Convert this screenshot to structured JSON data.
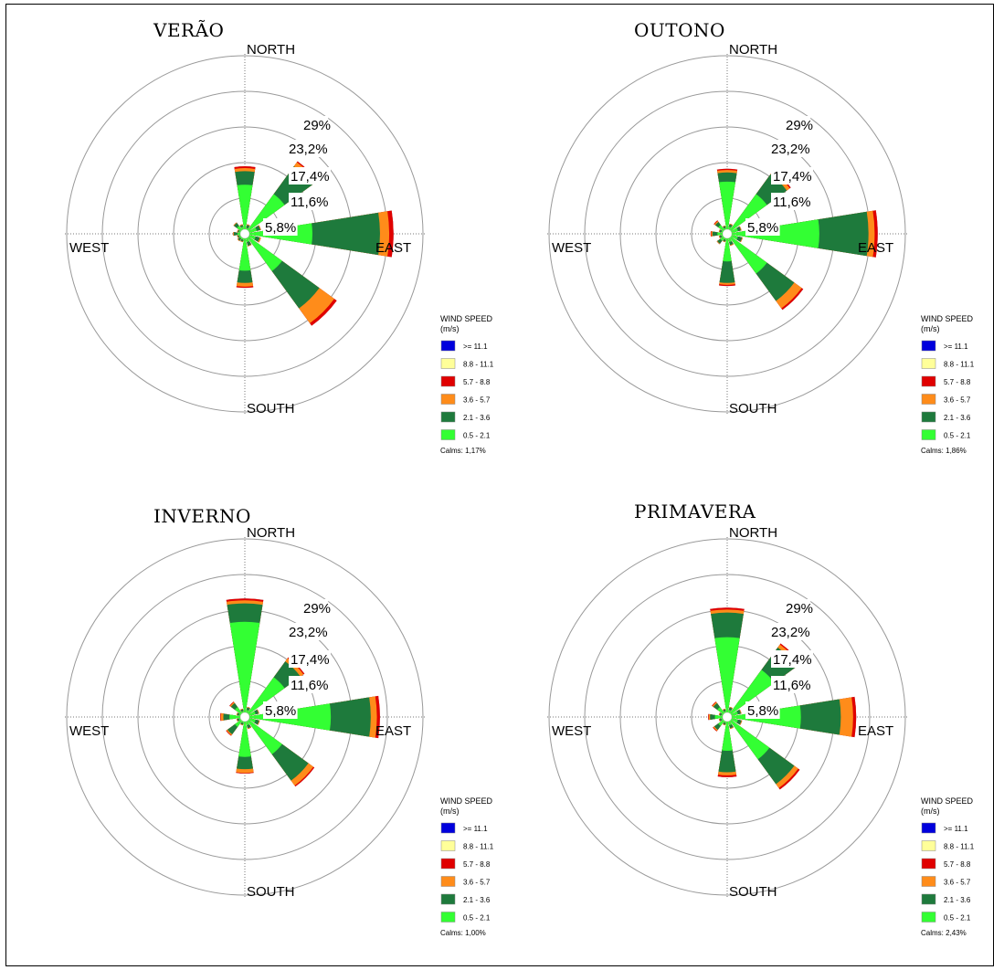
{
  "chart_data": [
    {
      "type": "wind-rose",
      "title": "VERÃO",
      "direction_labels": [
        "NORTH",
        "EAST",
        "SOUTH",
        "WEST"
      ],
      "ring_labels": [
        "5,8%",
        "11,6%",
        "17,4%",
        "23,2%",
        "29%"
      ],
      "rings": [
        5.8,
        11.6,
        17.4,
        23.2,
        29
      ],
      "legend_title": [
        "WIND SPEED",
        "(m/s)"
      ],
      "bins": [
        "0.5 - 2.1",
        "2.1 - 3.6",
        "3.6 - 5.7",
        "5.7 - 8.8",
        "8.8 - 11.1",
        ">= 11.1"
      ],
      "bin_colors": [
        "#33ff33",
        "#1e7a3c",
        "#ff8c1a",
        "#e00000",
        "#ffff99",
        "#0000dd"
      ],
      "directions_deg": [
        0,
        22.5,
        45,
        67.5,
        90,
        112.5,
        135,
        157.5,
        180,
        202.5,
        225,
        247.5,
        270,
        292.5,
        315,
        337.5
      ],
      "cumulative_percent": [
        [
          8.0,
          10.2,
          10.7,
          11.0,
          11.0,
          11.0
        ],
        [
          1.0,
          1.5,
          1.6,
          1.6,
          1.6,
          1.6
        ],
        [
          8.0,
          13.6,
          14.4,
          14.6,
          14.6,
          14.6
        ],
        [
          2.0,
          2.6,
          2.7,
          2.7,
          2.7,
          2.7
        ],
        [
          11.0,
          22.0,
          23.5,
          24.2,
          24.2,
          24.2
        ],
        [
          1.8,
          2.5,
          2.7,
          2.7,
          2.7,
          2.7
        ],
        [
          7.5,
          15.0,
          18.0,
          18.5,
          18.5,
          18.5
        ],
        [
          1.4,
          2.0,
          2.1,
          2.1,
          2.1,
          2.1
        ],
        [
          6.0,
          8.0,
          8.6,
          8.8,
          8.8,
          8.8
        ],
        [
          1.0,
          1.3,
          1.4,
          1.4,
          1.4,
          1.4
        ],
        [
          1.0,
          1.4,
          1.5,
          1.5,
          1.5,
          1.5
        ],
        [
          1.0,
          1.2,
          1.3,
          1.3,
          1.3,
          1.3
        ],
        [
          1.2,
          1.8,
          1.9,
          1.9,
          1.9,
          1.9
        ],
        [
          1.0,
          1.2,
          1.3,
          1.3,
          1.3,
          1.3
        ],
        [
          1.6,
          2.2,
          2.3,
          2.3,
          2.3,
          2.3
        ],
        [
          1.2,
          1.5,
          1.6,
          1.6,
          1.6,
          1.6
        ]
      ],
      "calms": "Calms: 1,17%"
    },
    {
      "type": "wind-rose",
      "title": "OUTONO",
      "direction_labels": [
        "NORTH",
        "EAST",
        "SOUTH",
        "WEST"
      ],
      "ring_labels": [
        "5,8%",
        "11,6%",
        "17,4%",
        "23,2%",
        "29%"
      ],
      "rings": [
        5.8,
        11.6,
        17.4,
        23.2,
        29
      ],
      "legend_title": [
        "WIND SPEED",
        "(m/s)"
      ],
      "bins": [
        "0.5 - 2.1",
        "2.1 - 3.6",
        "3.6 - 5.7",
        "5.7 - 8.8",
        "8.8 - 11.1",
        ">= 11.1"
      ],
      "bin_colors": [
        "#33ff33",
        "#1e7a3c",
        "#ff8c1a",
        "#e00000",
        "#ffff99",
        "#0000dd"
      ],
      "directions_deg": [
        0,
        22.5,
        45,
        67.5,
        90,
        112.5,
        135,
        157.5,
        180,
        202.5,
        225,
        247.5,
        270,
        292.5,
        315,
        337.5
      ],
      "cumulative_percent": [
        [
          8.5,
          10.0,
          10.4,
          10.6,
          10.6,
          10.6
        ],
        [
          1.2,
          1.6,
          1.7,
          1.7,
          1.7,
          1.7
        ],
        [
          8.0,
          12.0,
          12.6,
          12.8,
          12.8,
          12.8
        ],
        [
          1.8,
          2.3,
          2.4,
          2.4,
          2.4,
          2.4
        ],
        [
          15.0,
          23.0,
          24.0,
          24.5,
          24.5,
          24.5
        ],
        [
          1.8,
          2.5,
          2.6,
          2.6,
          2.6,
          2.6
        ],
        [
          8.0,
          13.5,
          15.0,
          15.3,
          15.3,
          15.3
        ],
        [
          1.4,
          1.9,
          2.0,
          2.0,
          2.0,
          2.0
        ],
        [
          4.5,
          8.0,
          8.3,
          8.5,
          8.5,
          8.5
        ],
        [
          1.0,
          1.3,
          1.4,
          1.4,
          1.4,
          1.4
        ],
        [
          1.4,
          2.0,
          2.1,
          2.1,
          2.1,
          2.1
        ],
        [
          1.0,
          1.3,
          1.4,
          1.4,
          1.4,
          1.4
        ],
        [
          1.6,
          2.4,
          2.6,
          2.7,
          2.7,
          2.7
        ],
        [
          1.0,
          1.3,
          1.4,
          1.4,
          1.4,
          1.4
        ],
        [
          1.8,
          2.4,
          2.6,
          2.7,
          2.7,
          2.7
        ],
        [
          1.0,
          1.3,
          1.4,
          1.4,
          1.4,
          1.4
        ]
      ],
      "calms": "Calms: 1,86%"
    },
    {
      "type": "wind-rose",
      "title": "INVERNO",
      "direction_labels": [
        "NORTH",
        "EAST",
        "SOUTH",
        "WEST"
      ],
      "ring_labels": [
        "5,8%",
        "11,6%",
        "17,4%",
        "23,2%",
        "29%"
      ],
      "rings": [
        5.8,
        11.6,
        17.4,
        23.2,
        29
      ],
      "legend_title": [
        "WIND SPEED",
        "(m/s)"
      ],
      "bins": [
        "0.5 - 2.1",
        "2.1 - 3.6",
        "3.6 - 5.7",
        "5.7 - 8.8",
        "8.8 - 11.1",
        ">= 11.1"
      ],
      "bin_colors": [
        "#33ff33",
        "#1e7a3c",
        "#ff8c1a",
        "#e00000",
        "#ffff99",
        "#0000dd"
      ],
      "directions_deg": [
        0,
        22.5,
        45,
        67.5,
        90,
        112.5,
        135,
        157.5,
        180,
        202.5,
        225,
        247.5,
        270,
        292.5,
        315,
        337.5
      ],
      "cumulative_percent": [
        [
          15.5,
          18.5,
          19.0,
          19.3,
          19.3,
          19.3
        ],
        [
          1.2,
          1.6,
          1.7,
          1.7,
          1.7,
          1.7
        ],
        [
          8.0,
          11.2,
          11.8,
          12.0,
          12.0,
          12.0
        ],
        [
          1.8,
          2.3,
          2.4,
          2.4,
          2.4,
          2.4
        ],
        [
          14.0,
          20.5,
          21.5,
          22.0,
          22.0,
          22.0
        ],
        [
          1.8,
          2.4,
          2.5,
          2.5,
          2.5,
          2.5
        ],
        [
          7.5,
          12.8,
          13.8,
          14.0,
          14.0,
          14.0
        ],
        [
          1.4,
          1.9,
          2.0,
          2.0,
          2.0,
          2.0
        ],
        [
          6.5,
          8.5,
          9.1,
          9.2,
          9.2,
          9.2
        ],
        [
          1.0,
          1.3,
          1.4,
          1.4,
          1.4,
          1.4
        ],
        [
          2.0,
          3.5,
          3.7,
          3.8,
          3.8,
          3.8
        ],
        [
          1.0,
          1.3,
          1.4,
          1.4,
          1.4,
          1.4
        ],
        [
          2.5,
          3.5,
          3.9,
          4.0,
          4.0,
          4.0
        ],
        [
          1.0,
          1.3,
          1.4,
          1.4,
          1.4,
          1.4
        ],
        [
          2.0,
          2.8,
          3.0,
          3.1,
          3.1,
          3.1
        ],
        [
          1.0,
          1.3,
          1.4,
          1.4,
          1.4,
          1.4
        ]
      ],
      "calms": "Calms: 1,00%"
    },
    {
      "type": "wind-rose",
      "title": "PRIMAVERA",
      "direction_labels": [
        "NORTH",
        "EAST",
        "SOUTH",
        "WEST"
      ],
      "ring_labels": [
        "5,8%",
        "11,6%",
        "17,4%",
        "23,2%",
        "29%"
      ],
      "rings": [
        5.8,
        11.6,
        17.4,
        23.2,
        29
      ],
      "legend_title": [
        "WIND SPEED",
        "(m/s)"
      ],
      "bins": [
        "0.5 - 2.1",
        "2.1 - 3.6",
        "3.6 - 5.7",
        "5.7 - 8.8",
        "8.8 - 11.1",
        ">= 11.1"
      ],
      "bin_colors": [
        "#33ff33",
        "#1e7a3c",
        "#ff8c1a",
        "#e00000",
        "#ffff99",
        "#0000dd"
      ],
      "directions_deg": [
        0,
        22.5,
        45,
        67.5,
        90,
        112.5,
        135,
        157.5,
        180,
        202.5,
        225,
        247.5,
        270,
        292.5,
        315,
        337.5
      ],
      "cumulative_percent": [
        [
          13.0,
          17.0,
          17.5,
          17.8,
          17.8,
          17.8
        ],
        [
          1.2,
          1.6,
          1.7,
          1.7,
          1.7,
          1.7
        ],
        [
          9.5,
          14.0,
          14.6,
          14.8,
          14.8,
          14.8
        ],
        [
          1.8,
          2.3,
          2.4,
          2.4,
          2.4,
          2.4
        ],
        [
          12.0,
          18.5,
          20.5,
          21.0,
          21.0,
          21.0
        ],
        [
          1.8,
          2.4,
          2.5,
          2.5,
          2.5,
          2.5
        ],
        [
          8.5,
          13.5,
          14.3,
          14.6,
          14.6,
          14.6
        ],
        [
          1.4,
          1.9,
          2.0,
          2.0,
          2.0,
          2.0
        ],
        [
          5.5,
          9.0,
          9.5,
          9.8,
          9.8,
          9.8
        ],
        [
          1.0,
          1.3,
          1.4,
          1.4,
          1.4,
          1.4
        ],
        [
          1.8,
          2.6,
          2.8,
          2.9,
          2.9,
          2.9
        ],
        [
          1.0,
          1.3,
          1.4,
          1.4,
          1.4,
          1.4
        ],
        [
          2.0,
          2.8,
          3.0,
          3.1,
          3.1,
          3.1
        ],
        [
          1.0,
          1.3,
          1.4,
          1.4,
          1.4,
          1.4
        ],
        [
          2.0,
          2.8,
          3.0,
          3.1,
          3.1,
          3.1
        ],
        [
          1.0,
          1.3,
          1.4,
          1.4,
          1.4,
          1.4
        ]
      ],
      "calms": "Calms: 2,43%"
    }
  ]
}
